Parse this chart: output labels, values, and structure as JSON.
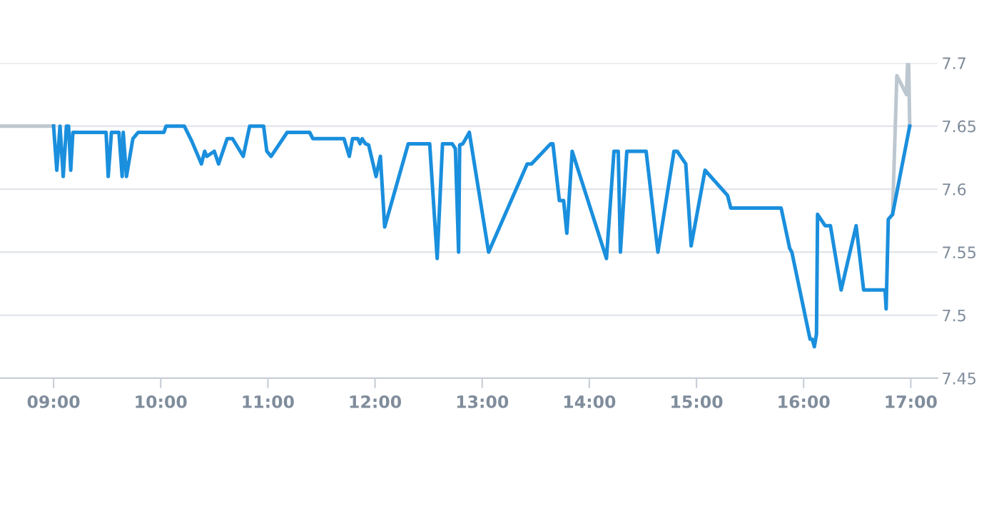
{
  "chart_data": {
    "type": "line",
    "xlim": [
      8.5,
      17.25
    ],
    "xticks": [
      {
        "value": 9,
        "label": "09:00"
      },
      {
        "value": 10,
        "label": "10:00"
      },
      {
        "value": 11,
        "label": "11:00"
      },
      {
        "value": 12,
        "label": "12:00"
      },
      {
        "value": 13,
        "label": "13:00"
      },
      {
        "value": 14,
        "label": "14:00"
      },
      {
        "value": 15,
        "label": "15:00"
      },
      {
        "value": 16,
        "label": "16:00"
      },
      {
        "value": 17,
        "label": "17:00"
      }
    ],
    "ylim": [
      7.45,
      7.7
    ],
    "yticks": [
      7.45,
      7.5,
      7.55,
      7.6,
      7.65,
      7.7
    ],
    "grid": "y",
    "marker": "none",
    "line_style": "solid",
    "series": [
      {
        "color": "#bdc7d0",
        "x": [
          8.5,
          9.0,
          9.01,
          16.83,
          16.87,
          16.96,
          16.97,
          16.98,
          16.99
        ],
        "values": [
          7.65,
          7.65,
          null,
          7.58,
          7.69,
          7.675,
          7.7,
          7.7,
          7.65
        ]
      },
      {
        "color": "#1a8fdd",
        "x": [
          9.0,
          9.03,
          9.06,
          9.09,
          9.12,
          9.14,
          9.16,
          9.18,
          9.49,
          9.51,
          9.54,
          9.61,
          9.64,
          9.65,
          9.68,
          9.74,
          9.79,
          10.03,
          10.05,
          10.22,
          10.29,
          10.38,
          10.41,
          10.43,
          10.5,
          10.54,
          10.62,
          10.67,
          10.77,
          10.83,
          10.96,
          10.99,
          11.03,
          11.18,
          11.39,
          11.42,
          11.71,
          11.76,
          11.79,
          11.84,
          11.86,
          11.88,
          11.91,
          11.94,
          12.01,
          12.05,
          12.09,
          12.31,
          12.51,
          12.58,
          12.63,
          12.72,
          12.75,
          12.78,
          12.79,
          12.82,
          12.88,
          13.06,
          13.42,
          13.46,
          13.64,
          13.66,
          13.72,
          13.76,
          13.79,
          13.84,
          14.16,
          14.23,
          14.27,
          14.29,
          14.35,
          14.53,
          14.64,
          14.79,
          14.82,
          14.9,
          14.95,
          15.08,
          15.29,
          15.32,
          15.79,
          15.87,
          15.89,
          16.06,
          16.08,
          16.1,
          16.12,
          16.13,
          16.2,
          16.25,
          16.35,
          16.49,
          16.56,
          16.76,
          16.77,
          16.79,
          16.83,
          16.99
        ],
        "values": [
          7.65,
          7.615,
          7.65,
          7.61,
          7.65,
          7.65,
          7.615,
          7.645,
          7.645,
          7.61,
          7.645,
          7.645,
          7.61,
          7.645,
          7.61,
          7.64,
          7.645,
          7.645,
          7.65,
          7.65,
          7.638,
          7.62,
          7.63,
          7.626,
          7.63,
          7.62,
          7.64,
          7.64,
          7.626,
          7.65,
          7.65,
          7.63,
          7.626,
          7.645,
          7.645,
          7.64,
          7.64,
          7.626,
          7.64,
          7.64,
          7.636,
          7.64,
          7.636,
          7.635,
          7.61,
          7.626,
          7.57,
          7.636,
          7.636,
          7.545,
          7.636,
          7.636,
          7.632,
          7.55,
          7.635,
          7.636,
          7.645,
          7.55,
          7.62,
          7.62,
          7.636,
          7.636,
          7.591,
          7.591,
          7.565,
          7.63,
          7.545,
          7.63,
          7.63,
          7.55,
          7.63,
          7.63,
          7.55,
          7.63,
          7.63,
          7.62,
          7.555,
          7.615,
          7.595,
          7.585,
          7.585,
          7.553,
          7.55,
          7.481,
          7.481,
          7.475,
          7.485,
          7.58,
          7.571,
          7.571,
          7.52,
          7.571,
          7.52,
          7.52,
          7.505,
          7.576,
          7.58,
          7.65
        ]
      }
    ]
  }
}
